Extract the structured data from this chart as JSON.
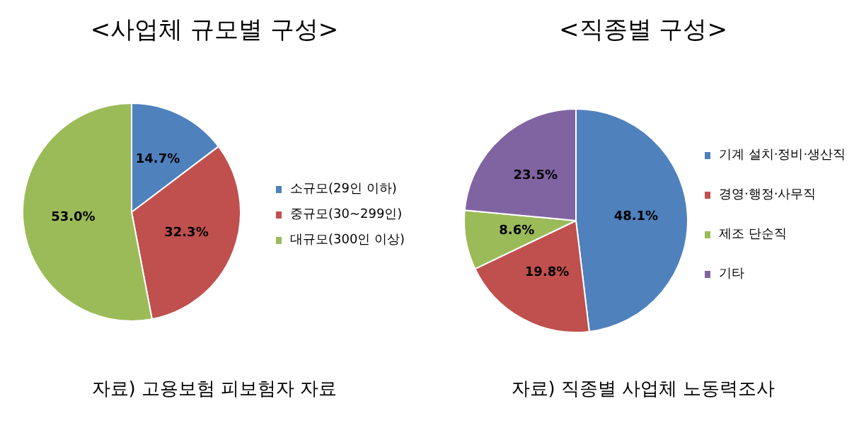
{
  "chart_data": [
    {
      "type": "pie",
      "title": "<사업체 규모별 구성>",
      "categories": [
        "소규모(29인 이하)",
        "중규모(30~299인)",
        "대규모(300인 이상)"
      ],
      "values": [
        14.7,
        32.3,
        53.0
      ],
      "value_labels": [
        "14.7%",
        "32.3%",
        "53.0%"
      ],
      "colors": [
        "#4f81bd",
        "#c0504d",
        "#9bbb59"
      ],
      "legend": "right",
      "annotations": [
        "자료) 고용보험 피보험자 자료"
      ]
    },
    {
      "type": "pie",
      "title": "<직종별 구성>",
      "categories": [
        "기계 설치·정비·생산직",
        "경영·행정·사무직",
        "제조 단순직",
        "기타"
      ],
      "values": [
        48.1,
        19.8,
        8.6,
        23.5
      ],
      "value_labels": [
        "48.1%",
        "19.8%",
        "8.6%",
        "23.5%"
      ],
      "colors": [
        "#4f81bd",
        "#c0504d",
        "#9bbb59",
        "#8064a2"
      ],
      "legend": "right",
      "annotations": [
        "자료) 직종별 사업체 노동력조사"
      ]
    }
  ]
}
